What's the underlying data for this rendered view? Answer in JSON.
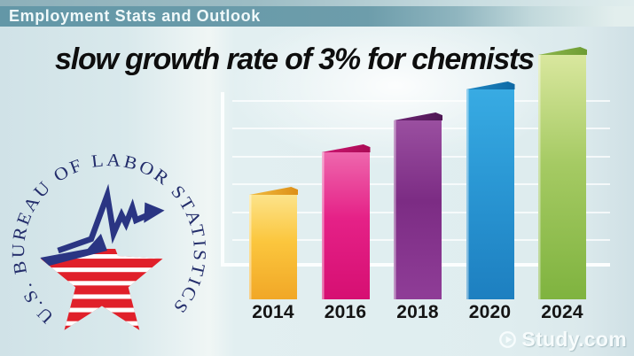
{
  "header": {
    "title": "Employment Stats and Outlook"
  },
  "slide": {
    "title": "slow growth rate of 3% for chemists"
  },
  "chart_data": {
    "type": "bar",
    "title": "slow growth rate of 3% for chemists",
    "categories": [
      "2014",
      "2016",
      "2018",
      "2020",
      "2024"
    ],
    "values": [
      118,
      166,
      202,
      237,
      276
    ],
    "value_note": "bar heights in screen px; chart shows steady growth, no numeric y-axis labels are displayed",
    "y_axis_labels": [],
    "xlabel": "",
    "ylabel": "",
    "grid": true,
    "legend": false,
    "bar_colors": [
      {
        "name": "yellow",
        "top": "#fce38a",
        "mid": "#fbc63d",
        "bottom": "#f1a727",
        "flap_left": "#f0bc42",
        "flap_right": "#dd8f17"
      },
      {
        "name": "pink",
        "top": "#ee67ad",
        "mid": "#e52187",
        "bottom": "#d60f72",
        "flap_left": "#cc1570",
        "flap_right": "#a90b55"
      },
      {
        "name": "purple",
        "top": "#9a4fa0",
        "mid": "#7c2c84",
        "bottom": "#8f3d97",
        "flap_left": "#6d2574",
        "flap_right": "#4e1754"
      },
      {
        "name": "blue",
        "top": "#38abe3",
        "mid": "#2a97d4",
        "bottom": "#1d7fc0",
        "flap_left": "#1f87c2",
        "flap_right": "#0e69a4"
      },
      {
        "name": "green",
        "top": "#d9e79e",
        "mid": "#a5ca63",
        "bottom": "#7fb33f",
        "flap_left": "#8fb74d",
        "flap_right": "#6d9c33"
      }
    ],
    "axis_color": "#ffffff"
  },
  "bls_logo": {
    "circular_text": "U.S. BUREAU OF LABOR STATISTICS",
    "star_red": "#e0202a",
    "navy": "#2a3583"
  },
  "watermark": {
    "text": "Study.com"
  }
}
